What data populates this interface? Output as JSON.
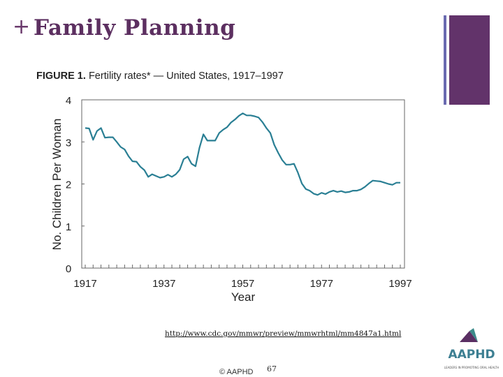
{
  "slide": {
    "plus_glyph": "+",
    "title": "Family Planning",
    "url": "http://www.cdc.gov/mmwr/preview/mmwrhtml/mm4847a1.html",
    "footer": "© AAPHD",
    "page_number": "67",
    "colors": {
      "title": "#5c2f60",
      "accent_bar": "#62336a",
      "thin_bar": "#6a6ab0",
      "line": "#2a7f94"
    }
  },
  "figure": {
    "label": "FIGURE 1.",
    "caption": "Fertility rates* — United States, 1917–1997"
  },
  "logo": {
    "text": "AAPHD",
    "tagline": "LEADERS IN PROMOTING ORAL HEALTH"
  },
  "chart_data": {
    "type": "line",
    "title": "",
    "xlabel": "Year",
    "ylabel": "No. Children Per Woman",
    "xlim": [
      1917,
      1997
    ],
    "ylim": [
      0,
      4
    ],
    "x_ticks": [
      "1917",
      "1937",
      "1957",
      "1977",
      "1997"
    ],
    "y_ticks": [
      "0",
      "1",
      "2",
      "3",
      "4"
    ],
    "grid": false,
    "series": [
      {
        "x": [
          1917,
          1918,
          1919,
          1920,
          1921,
          1922,
          1923,
          1924,
          1925,
          1926,
          1927,
          1928,
          1929,
          1930,
          1931,
          1932,
          1933,
          1934,
          1935,
          1936,
          1937,
          1938,
          1939,
          1940,
          1941,
          1942,
          1943,
          1944,
          1945,
          1946,
          1947,
          1948,
          1949,
          1950,
          1951,
          1952,
          1953,
          1954,
          1955,
          1956,
          1957,
          1958,
          1959,
          1960,
          1961,
          1962,
          1963,
          1964,
          1965,
          1966,
          1967,
          1968,
          1969,
          1970,
          1971,
          1972,
          1973,
          1974,
          1975,
          1976,
          1977,
          1978,
          1979,
          1980,
          1981,
          1982,
          1983,
          1984,
          1985,
          1986,
          1987,
          1988,
          1989,
          1990,
          1991,
          1992,
          1993,
          1994,
          1995,
          1996,
          1997
        ],
        "y": [
          3.33,
          3.32,
          3.05,
          3.26,
          3.33,
          3.1,
          3.11,
          3.11,
          3.0,
          2.88,
          2.82,
          2.66,
          2.54,
          2.53,
          2.41,
          2.33,
          2.17,
          2.23,
          2.19,
          2.15,
          2.17,
          2.22,
          2.17,
          2.23,
          2.34,
          2.59,
          2.65,
          2.48,
          2.42,
          2.86,
          3.18,
          3.03,
          3.03,
          3.03,
          3.21,
          3.29,
          3.35,
          3.46,
          3.53,
          3.62,
          3.68,
          3.63,
          3.63,
          3.61,
          3.58,
          3.47,
          3.33,
          3.21,
          2.93,
          2.74,
          2.57,
          2.46,
          2.46,
          2.48,
          2.27,
          2.01,
          1.88,
          1.84,
          1.77,
          1.74,
          1.79,
          1.76,
          1.81,
          1.84,
          1.81,
          1.83,
          1.8,
          1.81,
          1.84,
          1.84,
          1.87,
          1.93,
          2.01,
          2.08,
          2.07,
          2.06,
          2.03,
          2.0,
          1.98,
          2.03,
          2.03
        ]
      }
    ]
  }
}
